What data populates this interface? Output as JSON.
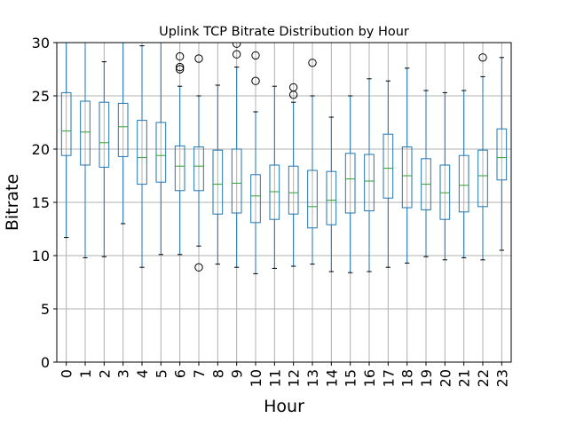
{
  "chart_data": {
    "type": "boxplot",
    "title": "Uplink TCP Bitrate Distribution by Hour",
    "xlabel": "Hour",
    "ylabel": "Bitrate",
    "ylim": [
      0,
      30
    ],
    "yticks": [
      "0",
      "5",
      "10",
      "15",
      "20",
      "25",
      "30"
    ],
    "grid": true,
    "categories": [
      "0",
      "1",
      "2",
      "3",
      "4",
      "5",
      "6",
      "7",
      "8",
      "9",
      "10",
      "11",
      "12",
      "13",
      "14",
      "15",
      "16",
      "17",
      "18",
      "19",
      "20",
      "21",
      "22",
      "23"
    ],
    "boxes": [
      {
        "whislo": 11.7,
        "q1": 19.4,
        "med": 21.7,
        "q3": 25.3,
        "whishi": 30.5,
        "fliers": []
      },
      {
        "whislo": 9.8,
        "q1": 18.5,
        "med": 21.6,
        "q3": 24.5,
        "whishi": 30.5,
        "fliers": []
      },
      {
        "whislo": 9.9,
        "q1": 18.3,
        "med": 20.6,
        "q3": 24.4,
        "whishi": 28.2,
        "fliers": []
      },
      {
        "whislo": 13.0,
        "q1": 19.3,
        "med": 22.1,
        "q3": 24.3,
        "whishi": 30.5,
        "fliers": []
      },
      {
        "whislo": 8.9,
        "q1": 16.7,
        "med": 19.2,
        "q3": 22.7,
        "whishi": 29.7,
        "fliers": []
      },
      {
        "whislo": 10.1,
        "q1": 16.9,
        "med": 19.4,
        "q3": 22.5,
        "whishi": 30.5,
        "fliers": []
      },
      {
        "whislo": 10.1,
        "q1": 16.1,
        "med": 18.4,
        "q3": 20.3,
        "whishi": 25.9,
        "fliers": [
          27.5,
          27.7,
          28.7
        ]
      },
      {
        "whislo": 10.9,
        "q1": 16.1,
        "med": 18.4,
        "q3": 20.2,
        "whishi": 25.0,
        "fliers": [
          8.9,
          28.5
        ]
      },
      {
        "whislo": 9.2,
        "q1": 13.9,
        "med": 16.7,
        "q3": 19.9,
        "whishi": 26.0,
        "fliers": []
      },
      {
        "whislo": 8.9,
        "q1": 14.0,
        "med": 16.8,
        "q3": 20.0,
        "whishi": 27.7,
        "fliers": [
          28.9,
          29.9
        ]
      },
      {
        "whislo": 8.3,
        "q1": 13.1,
        "med": 15.6,
        "q3": 17.6,
        "whishi": 23.5,
        "fliers": [
          26.4,
          28.8
        ]
      },
      {
        "whislo": 8.8,
        "q1": 13.4,
        "med": 16.0,
        "q3": 18.5,
        "whishi": 25.9,
        "fliers": []
      },
      {
        "whislo": 9.0,
        "q1": 13.9,
        "med": 15.9,
        "q3": 18.4,
        "whishi": 24.4,
        "fliers": [
          25.1,
          25.8
        ]
      },
      {
        "whislo": 9.2,
        "q1": 12.6,
        "med": 14.6,
        "q3": 18.0,
        "whishi": 25.0,
        "fliers": [
          28.1
        ]
      },
      {
        "whislo": 8.5,
        "q1": 12.9,
        "med": 15.2,
        "q3": 17.9,
        "whishi": 23.0,
        "fliers": []
      },
      {
        "whislo": 8.4,
        "q1": 14.0,
        "med": 17.2,
        "q3": 19.6,
        "whishi": 25.0,
        "fliers": []
      },
      {
        "whislo": 8.5,
        "q1": 14.2,
        "med": 17.0,
        "q3": 19.5,
        "whishi": 26.6,
        "fliers": []
      },
      {
        "whislo": 8.9,
        "q1": 15.4,
        "med": 18.2,
        "q3": 21.4,
        "whishi": 26.4,
        "fliers": []
      },
      {
        "whislo": 9.3,
        "q1": 14.5,
        "med": 17.5,
        "q3": 20.2,
        "whishi": 27.6,
        "fliers": []
      },
      {
        "whislo": 9.9,
        "q1": 14.3,
        "med": 16.7,
        "q3": 19.1,
        "whishi": 25.5,
        "fliers": []
      },
      {
        "whislo": 9.6,
        "q1": 13.4,
        "med": 15.9,
        "q3": 18.5,
        "whishi": 25.3,
        "fliers": []
      },
      {
        "whislo": 9.8,
        "q1": 14.1,
        "med": 16.6,
        "q3": 19.4,
        "whishi": 25.5,
        "fliers": []
      },
      {
        "whislo": 9.6,
        "q1": 14.6,
        "med": 17.5,
        "q3": 19.9,
        "whishi": 26.8,
        "fliers": [
          28.6
        ]
      },
      {
        "whislo": 10.5,
        "q1": 17.1,
        "med": 19.2,
        "q3": 21.9,
        "whishi": 28.6,
        "fliers": []
      }
    ],
    "colors": {
      "box": "#1f77b4",
      "median": "#2ca02c",
      "grid": "#b0b0b0",
      "axis": "#000000"
    }
  }
}
